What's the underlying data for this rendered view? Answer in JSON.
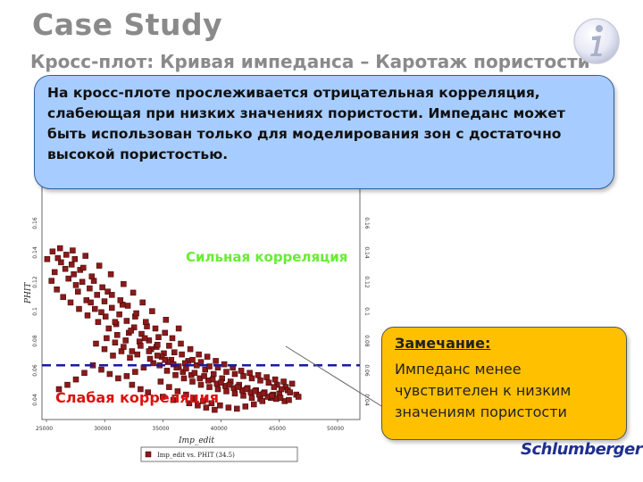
{
  "title": "Case Study",
  "subtitle": "Кросс-плот: Кривая импеданса – Каротаж пористости",
  "info_icon": "info-icon",
  "note": "На кросс-плоте прослеживается отрицательная корреляция, слабеющая при низких значениях пористости. Импеданс может быть использован только для моделирования зон с достаточно высокой пористостью.",
  "annotations": {
    "strong": "Сильная корреляция",
    "weak": "Слабая корреляция"
  },
  "remark": {
    "title": "Замечание:",
    "text": "Импеданс менее чувствителен к низким значениям пористости"
  },
  "logo": "Schlumberger",
  "colors": {
    "point": "#8b1a1a",
    "point_edge": "#3a0000",
    "threshold": "#1a1aa0",
    "strong": "#66ee33",
    "weak": "#dd1111"
  },
  "chart_data": {
    "type": "scatter",
    "xlabel": "Imp_edit",
    "ylabel": "PHIT",
    "xlim": [
      25000,
      55000
    ],
    "ylim": [
      0.02,
      0.3
    ],
    "x_ticks": [
      "25000",
      "30000",
      "35000",
      "40000",
      "45000",
      "50000"
    ],
    "y_ticks": [
      "0.04",
      "0.06",
      "0.08",
      "0.1",
      "0.12",
      "0.14",
      "0.16"
    ],
    "threshold_y": 0.07,
    "legend": "Imp_edit vs. PHIT (34.5)",
    "points": [
      [
        28000,
        0.154
      ],
      [
        28800,
        0.147
      ],
      [
        29500,
        0.141
      ],
      [
        30200,
        0.135
      ],
      [
        30900,
        0.129
      ],
      [
        31600,
        0.123
      ],
      [
        32300,
        0.117
      ],
      [
        33000,
        0.111
      ],
      [
        33700,
        0.105
      ],
      [
        34400,
        0.099
      ],
      [
        35100,
        0.093
      ],
      [
        35800,
        0.087
      ],
      [
        36500,
        0.081
      ],
      [
        37200,
        0.075
      ],
      [
        37900,
        0.069
      ],
      [
        27500,
        0.15
      ],
      [
        28400,
        0.138
      ],
      [
        29200,
        0.13
      ],
      [
        30000,
        0.122
      ],
      [
        31000,
        0.115
      ],
      [
        32000,
        0.108
      ],
      [
        33200,
        0.1
      ],
      [
        34200,
        0.092
      ],
      [
        35300,
        0.085
      ],
      [
        36300,
        0.078
      ],
      [
        27800,
        0.163
      ],
      [
        28600,
        0.158
      ],
      [
        29900,
        0.148
      ],
      [
        31200,
        0.138
      ],
      [
        32600,
        0.126
      ],
      [
        33800,
        0.115
      ],
      [
        34900,
        0.106
      ],
      [
        36000,
        0.096
      ],
      [
        37000,
        0.088
      ],
      [
        38200,
        0.08
      ],
      [
        26800,
        0.165
      ],
      [
        27200,
        0.159
      ],
      [
        28200,
        0.144
      ],
      [
        29600,
        0.128
      ],
      [
        30600,
        0.119
      ],
      [
        31900,
        0.11
      ],
      [
        33400,
        0.102
      ],
      [
        34700,
        0.095
      ],
      [
        35900,
        0.089
      ],
      [
        37500,
        0.082
      ],
      [
        38800,
        0.074
      ],
      [
        39600,
        0.07
      ],
      [
        40400,
        0.066
      ],
      [
        41200,
        0.062
      ],
      [
        42000,
        0.058
      ],
      [
        42800,
        0.055
      ],
      [
        43600,
        0.052
      ],
      [
        44400,
        0.049
      ],
      [
        45200,
        0.047
      ],
      [
        46000,
        0.045
      ],
      [
        46800,
        0.043
      ],
      [
        38500,
        0.072
      ],
      [
        39200,
        0.075
      ],
      [
        40000,
        0.073
      ],
      [
        40800,
        0.069
      ],
      [
        41600,
        0.068
      ],
      [
        42400,
        0.064
      ],
      [
        43200,
        0.062
      ],
      [
        44000,
        0.06
      ],
      [
        44800,
        0.058
      ],
      [
        45600,
        0.056
      ],
      [
        46400,
        0.054
      ],
      [
        47200,
        0.052
      ],
      [
        48000,
        0.05
      ],
      [
        36800,
        0.065
      ],
      [
        37600,
        0.061
      ],
      [
        38400,
        0.058
      ],
      [
        39200,
        0.055
      ],
      [
        40000,
        0.052
      ],
      [
        40800,
        0.05
      ],
      [
        41600,
        0.048
      ],
      [
        42400,
        0.046
      ],
      [
        43200,
        0.044
      ],
      [
        44000,
        0.042
      ],
      [
        44800,
        0.04
      ],
      [
        45600,
        0.039
      ],
      [
        35500,
        0.072
      ],
      [
        34600,
        0.068
      ],
      [
        33800,
        0.064
      ],
      [
        33000,
        0.06
      ],
      [
        32200,
        0.058
      ],
      [
        31400,
        0.062
      ],
      [
        30600,
        0.066
      ],
      [
        29800,
        0.07
      ],
      [
        29000,
        0.063
      ],
      [
        28200,
        0.057
      ],
      [
        27400,
        0.052
      ],
      [
        26600,
        0.048
      ],
      [
        36200,
        0.055
      ],
      [
        37000,
        0.05
      ],
      [
        37800,
        0.046
      ],
      [
        38600,
        0.043
      ],
      [
        39400,
        0.04
      ],
      [
        40200,
        0.037
      ],
      [
        41000,
        0.035
      ],
      [
        41800,
        0.033
      ],
      [
        42600,
        0.031
      ],
      [
        43400,
        0.03
      ],
      [
        44200,
        0.032
      ],
      [
        45000,
        0.034
      ],
      [
        45800,
        0.037
      ],
      [
        46600,
        0.04
      ],
      [
        47400,
        0.044
      ],
      [
        48200,
        0.047
      ],
      [
        49000,
        0.043
      ],
      [
        38100,
        0.09
      ],
      [
        37300,
        0.095
      ],
      [
        36600,
        0.1
      ],
      [
        35700,
        0.104
      ],
      [
        34800,
        0.11
      ],
      [
        33900,
        0.118
      ],
      [
        33100,
        0.125
      ],
      [
        32400,
        0.13
      ],
      [
        31600,
        0.135
      ],
      [
        30700,
        0.142
      ],
      [
        29700,
        0.152
      ],
      [
        28900,
        0.16
      ],
      [
        28100,
        0.168
      ],
      [
        27300,
        0.172
      ],
      [
        26500,
        0.169
      ],
      [
        34000,
        0.08
      ],
      [
        33300,
        0.077
      ],
      [
        32500,
        0.083
      ],
      [
        31700,
        0.079
      ],
      [
        30900,
        0.085
      ],
      [
        30100,
        0.09
      ],
      [
        39000,
        0.085
      ],
      [
        39800,
        0.08
      ],
      [
        40600,
        0.078
      ],
      [
        41400,
        0.074
      ],
      [
        42200,
        0.071
      ],
      [
        43000,
        0.068
      ],
      [
        43800,
        0.065
      ],
      [
        44600,
        0.063
      ],
      [
        45400,
        0.061
      ],
      [
        46200,
        0.059
      ],
      [
        47000,
        0.057
      ],
      [
        47800,
        0.055
      ],
      [
        48600,
        0.053
      ],
      [
        26200,
        0.156
      ],
      [
        25900,
        0.148
      ],
      [
        26400,
        0.14
      ],
      [
        27000,
        0.133
      ],
      [
        27700,
        0.128
      ],
      [
        28500,
        0.122
      ],
      [
        29300,
        0.116
      ],
      [
        30300,
        0.11
      ],
      [
        31300,
        0.104
      ],
      [
        32100,
        0.098
      ],
      [
        32900,
        0.093
      ],
      [
        35200,
        0.076
      ],
      [
        36100,
        0.07
      ],
      [
        36900,
        0.073
      ],
      [
        37700,
        0.068
      ],
      [
        38300,
        0.064
      ],
      [
        39100,
        0.061
      ],
      [
        39900,
        0.058
      ],
      [
        40700,
        0.056
      ],
      [
        41500,
        0.053
      ],
      [
        42300,
        0.051
      ],
      [
        43100,
        0.049
      ],
      [
        43900,
        0.047
      ],
      [
        44700,
        0.045
      ],
      [
        45500,
        0.043
      ],
      [
        46300,
        0.041
      ],
      [
        47100,
        0.039
      ],
      [
        47900,
        0.037
      ],
      [
        33500,
        0.052
      ],
      [
        34300,
        0.048
      ],
      [
        35000,
        0.045
      ],
      [
        36400,
        0.041
      ],
      [
        37400,
        0.038
      ],
      [
        38900,
        0.035
      ],
      [
        39700,
        0.033
      ],
      [
        40500,
        0.031
      ],
      [
        41300,
        0.029
      ],
      [
        46900,
        0.05
      ],
      [
        47600,
        0.048
      ],
      [
        48400,
        0.045
      ],
      [
        49200,
        0.041
      ],
      [
        25500,
        0.168
      ],
      [
        26000,
        0.175
      ],
      [
        26700,
        0.178
      ],
      [
        27900,
        0.176
      ],
      [
        29100,
        0.171
      ],
      [
        30400,
        0.162
      ],
      [
        31500,
        0.154
      ],
      [
        32700,
        0.145
      ],
      [
        33600,
        0.137
      ],
      [
        34500,
        0.128
      ],
      [
        35400,
        0.12
      ],
      [
        36700,
        0.112
      ],
      [
        37900,
        0.104
      ],
      [
        31100,
        0.095
      ],
      [
        31900,
        0.091
      ],
      [
        32700,
        0.087
      ],
      [
        33500,
        0.083
      ],
      [
        34300,
        0.088
      ],
      [
        35100,
        0.083
      ],
      [
        35900,
        0.079
      ],
      [
        36600,
        0.075
      ],
      [
        37400,
        0.071
      ],
      [
        38600,
        0.067
      ],
      [
        39400,
        0.063
      ],
      [
        40300,
        0.06
      ],
      [
        41100,
        0.057
      ],
      [
        41900,
        0.054
      ],
      [
        42700,
        0.052
      ],
      [
        43500,
        0.05
      ],
      [
        44300,
        0.048
      ],
      [
        45100,
        0.046
      ],
      [
        45900,
        0.044
      ],
      [
        46700,
        0.042
      ],
      [
        47500,
        0.04
      ],
      [
        48300,
        0.038
      ]
    ]
  }
}
